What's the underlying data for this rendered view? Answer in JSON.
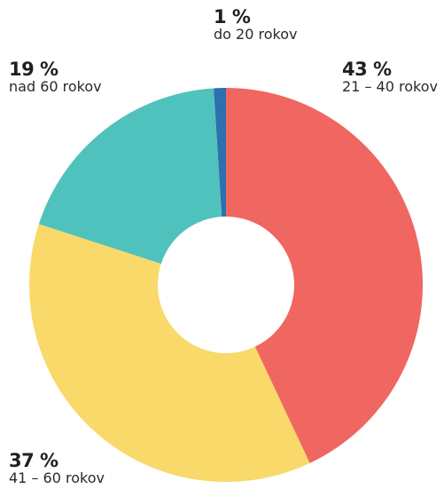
{
  "chart_data": {
    "type": "pie",
    "variant": "donut",
    "slices": [
      {
        "percent_label": "1 %",
        "category": "do 20 rokov",
        "value": 1,
        "color": "#2e6fad"
      },
      {
        "percent_label": "43 %",
        "category": "21 – 40 rokov",
        "value": 43,
        "color": "#f06660"
      },
      {
        "percent_label": "37 %",
        "category": "41 – 60 rokov",
        "value": 37,
        "color": "#f8d96a"
      },
      {
        "percent_label": "19 %",
        "category": "nad 60 rokov",
        "value": 19,
        "color": "#4fc2bd"
      }
    ],
    "title": "",
    "legend": "none"
  }
}
